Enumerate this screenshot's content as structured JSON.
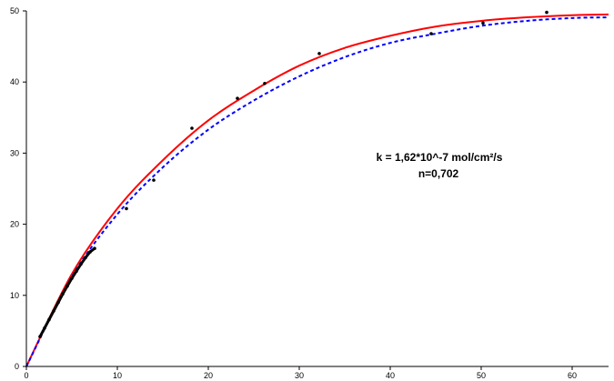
{
  "chart_data": {
    "type": "scatter",
    "title": "",
    "xlabel": "",
    "ylabel": "",
    "xlim": [
      0,
      64
    ],
    "ylim": [
      0,
      50
    ],
    "x_ticks": [
      0,
      10,
      20,
      30,
      40,
      50,
      60
    ],
    "y_ticks": [
      0,
      10,
      20,
      30,
      40,
      50
    ],
    "grid": false,
    "annotations": [
      "k = 1,62*10^-7 mol/cm²/s",
      "n=0,702"
    ],
    "series": [
      {
        "kind": "scatter",
        "color": "#000000",
        "x": [
          1.5,
          2.0,
          2.5,
          3.0,
          3.5,
          4.0,
          4.5,
          5.0,
          5.5,
          6.0,
          6.5,
          7.0,
          7.5,
          11.0,
          14.0,
          18.2,
          23.2,
          26.2,
          32.2,
          44.5,
          50.2,
          57.2
        ],
        "y": [
          4.2,
          5.4,
          6.6,
          7.8,
          9.0,
          10.2,
          11.3,
          12.4,
          13.4,
          14.4,
          15.3,
          16.1,
          16.6,
          22.2,
          26.2,
          33.5,
          37.7,
          39.8,
          44.0,
          46.8,
          48.3,
          49.8
        ]
      },
      {
        "kind": "line",
        "color": "#ff0000",
        "dash": "solid",
        "x": [
          0,
          5,
          10,
          15,
          20,
          25,
          30,
          35,
          40,
          45,
          50,
          55,
          60,
          64
        ],
        "y": [
          0,
          13.0,
          22.2,
          29.0,
          34.6,
          38.8,
          42.3,
          44.8,
          46.5,
          47.8,
          48.6,
          49.1,
          49.4,
          49.5
        ]
      },
      {
        "kind": "line",
        "color": "#0000ff",
        "dash": "dashed",
        "x": [
          0,
          5,
          10,
          15,
          20,
          25,
          30,
          35,
          40,
          45,
          50,
          55,
          60,
          64
        ],
        "y": [
          0,
          12.6,
          21.4,
          28.0,
          33.3,
          37.4,
          40.8,
          43.5,
          45.5,
          46.8,
          47.9,
          48.6,
          49.0,
          49.1
        ]
      }
    ]
  }
}
